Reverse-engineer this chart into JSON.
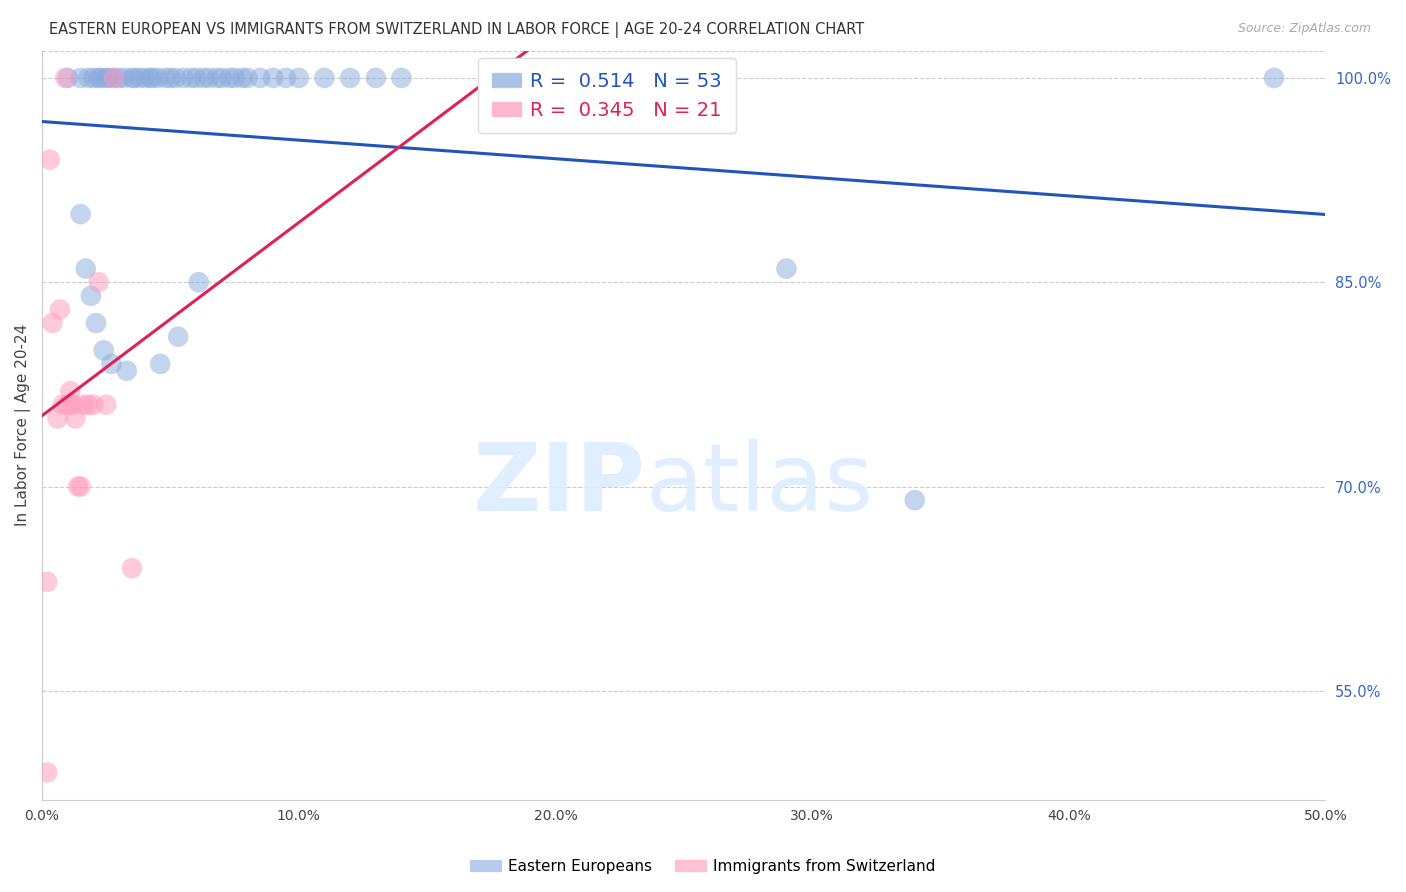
{
  "title": "EASTERN EUROPEAN VS IMMIGRANTS FROM SWITZERLAND IN LABOR FORCE | AGE 20-24 CORRELATION CHART",
  "source": "Source: ZipAtlas.com",
  "ylabel": "In Labor Force | Age 20-24",
  "blue_label": "Eastern Europeans",
  "pink_label": "Immigrants from Switzerland",
  "blue_R": 0.514,
  "blue_N": 53,
  "pink_R": 0.345,
  "pink_N": 21,
  "xlim": [
    0.0,
    0.5
  ],
  "ylim": [
    0.47,
    1.02
  ],
  "xtick_vals": [
    0.0,
    0.1,
    0.2,
    0.3,
    0.4,
    0.5
  ],
  "xtick_labels": [
    "0.0%",
    "10.0%",
    "20.0%",
    "30.0%",
    "40.0%",
    "50.0%"
  ],
  "ytick_right_vals": [
    0.55,
    0.7,
    0.85,
    1.0
  ],
  "ytick_right_labels": [
    "55.0%",
    "70.0%",
    "85.0%",
    "100.0%"
  ],
  "blue_color": "#88AADD",
  "pink_color": "#FF99BB",
  "blue_line_color": "#2255BB",
  "pink_line_color": "#DD2255",
  "watermark_zip": "ZIP",
  "watermark_atlas": "atlas",
  "blue_x": [
    0.01,
    0.015,
    0.018,
    0.02,
    0.022,
    0.023,
    0.025,
    0.026,
    0.028,
    0.03,
    0.032,
    0.035,
    0.036,
    0.038,
    0.04,
    0.042,
    0.043,
    0.045,
    0.048,
    0.05,
    0.052,
    0.055,
    0.058,
    0.06,
    0.063,
    0.065,
    0.068,
    0.07,
    0.073,
    0.075,
    0.078,
    0.08,
    0.085,
    0.09,
    0.095,
    0.1,
    0.11,
    0.12,
    0.13,
    0.14,
    0.015,
    0.017,
    0.019,
    0.021,
    0.024,
    0.027,
    0.033,
    0.046,
    0.053,
    0.061,
    0.29,
    0.34,
    0.48
  ],
  "blue_y": [
    1.0,
    1.0,
    1.0,
    1.0,
    1.0,
    1.0,
    1.0,
    1.0,
    1.0,
    1.0,
    1.0,
    1.0,
    1.0,
    1.0,
    1.0,
    1.0,
    1.0,
    1.0,
    1.0,
    1.0,
    1.0,
    1.0,
    1.0,
    1.0,
    1.0,
    1.0,
    1.0,
    1.0,
    1.0,
    1.0,
    1.0,
    1.0,
    1.0,
    1.0,
    1.0,
    1.0,
    1.0,
    1.0,
    1.0,
    1.0,
    0.9,
    0.86,
    0.84,
    0.82,
    0.8,
    0.79,
    0.785,
    0.79,
    0.81,
    0.85,
    0.86,
    0.69,
    1.0
  ],
  "pink_x": [
    0.003,
    0.004,
    0.006,
    0.007,
    0.008,
    0.009,
    0.01,
    0.011,
    0.012,
    0.013,
    0.014,
    0.015,
    0.016,
    0.018,
    0.02,
    0.022,
    0.025,
    0.028,
    0.035,
    0.002,
    0.002
  ],
  "pink_y": [
    0.94,
    0.82,
    0.75,
    0.83,
    0.76,
    1.0,
    0.76,
    0.77,
    0.76,
    0.75,
    0.7,
    0.7,
    0.76,
    0.76,
    0.76,
    0.85,
    0.76,
    1.0,
    0.64,
    0.63,
    0.49
  ]
}
